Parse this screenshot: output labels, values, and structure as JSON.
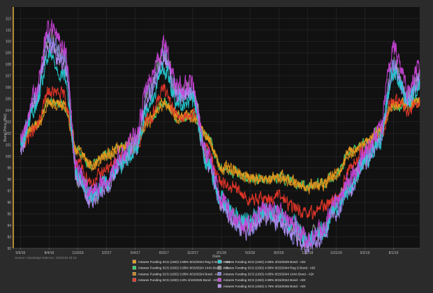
{
  "chart_data": {
    "type": "line",
    "title": "",
    "xlabel": "Date",
    "ylabel": "Bond Price (Bid)",
    "source": "Source: Advantage Data Inc. 10/23/19 19:16",
    "ylim": [
      92,
      113
    ],
    "yticks": [
      92,
      93,
      94,
      95,
      96,
      97,
      98,
      99,
      100,
      101,
      102,
      103,
      104,
      105,
      106,
      107,
      108,
      109,
      110,
      111,
      112
    ],
    "xticks": [
      "5/5/16",
      "8/4/16",
      "11/3/16",
      "2/2/17",
      "5/4/17",
      "8/3/17",
      "11/2/17",
      "2/1/18",
      "5/3/18",
      "8/2/18",
      "11/1/18",
      "1/31/19",
      "5/2/19",
      "8/1/19"
    ],
    "x": [
      "5/5/16",
      "6/20/16",
      "8/4/16",
      "9/19/16",
      "11/3/16",
      "12/18/16",
      "2/2/17",
      "3/20/17",
      "5/4/17",
      "6/18/17",
      "8/3/17",
      "9/17/17",
      "11/2/17",
      "12/17/17",
      "2/1/18",
      "3/18/18",
      "5/3/18",
      "6/17/18",
      "8/2/18",
      "9/16/18",
      "11/1/18",
      "12/16/18",
      "1/31/19",
      "3/17/19",
      "5/2/19",
      "6/16/19",
      "8/1/19",
      "9/15/19",
      "10/23/19"
    ],
    "grid": true,
    "legend_position": "bottom",
    "series": [
      {
        "name": "Antares Funding SCS (USD) 3.85% 8/10/2024 Reg S Bond - ADI",
        "color": "#e89a1c",
        "values": [
          101.5,
          102.6,
          104.8,
          104.5,
          100.5,
          99.3,
          100.2,
          100.9,
          101.5,
          103.2,
          104.8,
          103.5,
          103.6,
          101.8,
          99.1,
          98.8,
          98.2,
          98.0,
          98.3,
          97.9,
          97.4,
          97.7,
          98.5,
          100.5,
          101.2,
          102.3,
          104.6,
          104.6,
          104.9
        ]
      },
      {
        "name": "Antares Funding SCS (USD) 3.85% 8/10/2024 144A Bond - ADI",
        "color": "#3bd16f",
        "values": [
          101.4,
          102.5,
          104.7,
          104.4,
          100.4,
          99.2,
          100.1,
          100.8,
          101.4,
          103.1,
          104.7,
          103.4,
          103.5,
          101.7,
          99.0,
          98.7,
          98.1,
          97.9,
          98.2,
          97.8,
          97.3,
          97.6,
          98.4,
          100.4,
          101.1,
          102.2,
          104.5,
          104.5,
          104.8
        ]
      },
      {
        "name": "Antares Funding SCS (USD) 3.85% 8/10/2024 Bond - ADI",
        "color": "#c6801c",
        "values": [
          101.3,
          102.4,
          104.6,
          104.3,
          100.3,
          99.1,
          100.0,
          100.7,
          101.3,
          103.0,
          104.6,
          103.3,
          103.4,
          101.6,
          98.9,
          98.6,
          98.0,
          97.8,
          98.1,
          97.7,
          97.2,
          97.5,
          98.3,
          100.3,
          101.0,
          102.1,
          104.4,
          104.4,
          104.7
        ]
      },
      {
        "name": "Antares Funding SCS (USD) 3.8% 3/10/2025 Bond - ADI",
        "color": "#e8372a",
        "values": [
          100.9,
          102.3,
          105.6,
          105.3,
          99.2,
          97.8,
          98.9,
          99.8,
          100.8,
          103.4,
          105.8,
          103.5,
          103.7,
          100.7,
          97.6,
          97.1,
          96.2,
          96.3,
          96.5,
          95.6,
          94.8,
          95.6,
          96.4,
          99.0,
          100.5,
          101.4,
          104.9,
          104.2,
          104.8
        ]
      },
      {
        "name": "Antares Funding SCS (USD) 4.65% 3/15/2029 Bond - ADI",
        "color": "#23c8cf",
        "values": [
          100.9,
          104.2,
          108.6,
          107.1,
          98.5,
          96.7,
          97.9,
          99.4,
          100.6,
          104.7,
          107.6,
          104.7,
          104.8,
          99.6,
          96.5,
          94.9,
          94.4,
          95.2,
          95.0,
          94.1,
          92.8,
          93.5,
          95.5,
          97.2,
          99.6,
          101.1,
          107.4,
          104.8,
          106.3
        ]
      },
      {
        "name": "Antares Funding SCS (USD) 4.85% 8/15/2044 Reg S Bond - ADI",
        "color": "#8c8c8c",
        "values": [
          101.1,
          105.1,
          110.3,
          108.9,
          98.3,
          96.5,
          97.6,
          99.6,
          101.2,
          105.9,
          108.9,
          105.6,
          105.7,
          99.9,
          96.2,
          94.4,
          93.8,
          95.0,
          94.7,
          93.6,
          92.6,
          93.4,
          95.6,
          97.5,
          99.8,
          101.6,
          108.1,
          105.1,
          106.9
        ]
      },
      {
        "name": "Antares Funding SCS (USD) 4.85% 8/15/2044 144A Bond - ADI",
        "color": "#7f7fd9",
        "values": [
          101.0,
          105.0,
          110.2,
          108.8,
          98.2,
          96.4,
          97.5,
          99.5,
          101.1,
          105.8,
          108.8,
          105.5,
          105.6,
          99.8,
          96.1,
          94.3,
          93.7,
          94.9,
          94.6,
          93.5,
          92.5,
          93.3,
          95.5,
          97.4,
          99.7,
          101.5,
          108.0,
          105.0,
          106.8
        ]
      },
      {
        "name": "Antares Funding SCS (USD) 4.85% 8/15/2044 Bond - ADI",
        "color": "#c743d6",
        "values": [
          101.2,
          105.6,
          111.2,
          109.6,
          98.6,
          96.9,
          98.0,
          100.1,
          101.8,
          106.6,
          109.6,
          106.1,
          106.2,
          100.2,
          96.5,
          94.6,
          94.1,
          95.4,
          95.2,
          94.0,
          92.9,
          93.9,
          96.3,
          98.0,
          100.3,
          102.2,
          109.3,
          105.8,
          107.5
        ]
      },
      {
        "name": "Antares Funding SCS (USD) 4.75% 3/15/2045 Bond - ADI",
        "color": "#b08cf0",
        "values": [
          101.0,
          104.8,
          109.6,
          108.2,
          98.1,
          96.3,
          97.4,
          99.3,
          100.9,
          105.4,
          108.3,
          105.2,
          105.3,
          99.6,
          96.0,
          94.2,
          93.6,
          94.8,
          94.5,
          93.4,
          92.4,
          93.2,
          95.2,
          97.2,
          99.5,
          101.3,
          107.5,
          104.8,
          106.5
        ]
      }
    ]
  },
  "colors": {
    "background": "#2b2b2b",
    "plot_background": "#111111",
    "grid": "#2f2f2f",
    "axis": "#d9a63a"
  }
}
